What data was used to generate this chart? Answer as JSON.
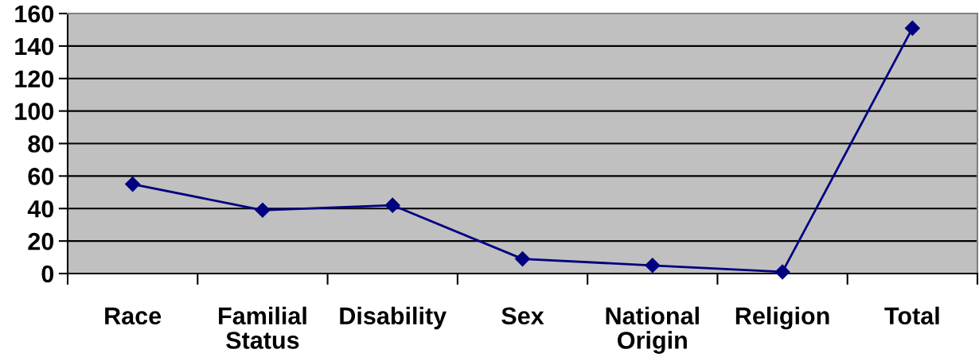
{
  "chart_data": {
    "type": "line",
    "categories": [
      "Race",
      "Familial Status",
      "Disability",
      "Sex",
      "National Origin",
      "Religion",
      "Total"
    ],
    "values": [
      55,
      39,
      42,
      9,
      5,
      1,
      151
    ],
    "color": "#000080",
    "ylim": [
      0,
      160
    ],
    "yticks": [
      0,
      20,
      40,
      60,
      80,
      100,
      120,
      140,
      160
    ],
    "grid": "y",
    "marker": "diamond",
    "line_style": "solid"
  }
}
